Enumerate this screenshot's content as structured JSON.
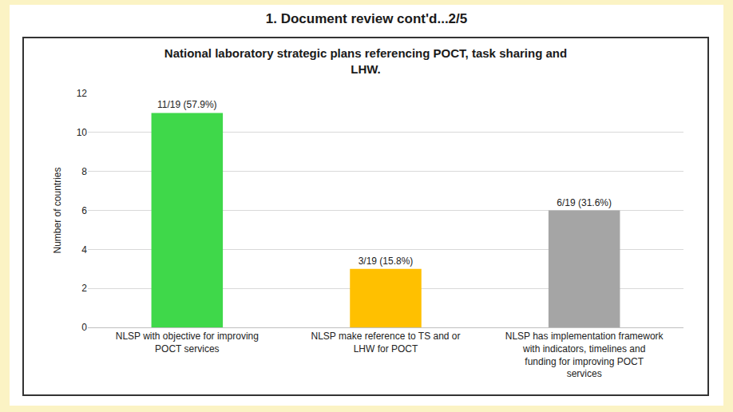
{
  "chart_data": {
    "type": "bar",
    "subtitle": "1. Document review cont'd...2/5",
    "title": "National laboratory strategic plans referencing POCT, task sharing and LHW.",
    "y_label": "Number of countries",
    "categories": [
      "NLSP with objective for improving POCT services",
      "NLSP make reference to TS and or LHW for POCT",
      "NLSP has implementation framework with indicators, timelines and funding for improving POCT services"
    ],
    "values": [
      11,
      3,
      6
    ],
    "value_labels": [
      "11/19 (57.9%)",
      "3/19 (15.8%)",
      "6/19 (31.6%)"
    ],
    "colors": [
      "#3fd84a",
      "#ffc000",
      "#a5a5a5"
    ],
    "ylim": [
      0,
      12
    ],
    "yticks": [
      0,
      2,
      4,
      6,
      8,
      10,
      12
    ],
    "grid": true,
    "data_labels": true
  }
}
